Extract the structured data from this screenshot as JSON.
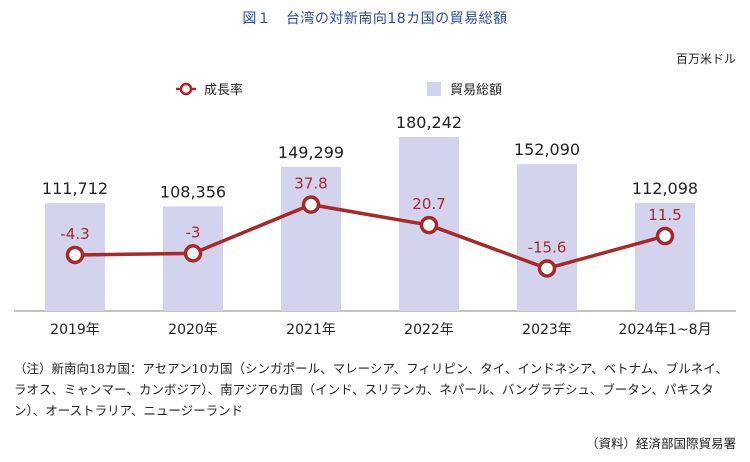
{
  "chart_data": {
    "type": "bar",
    "title": "図１　台湾の対新南向18カ国の貿易総額",
    "unit": "百万米ドル",
    "categories": [
      "2019年",
      "2020年",
      "2021年",
      "2022年",
      "2023年",
      "2024年1~8月"
    ],
    "series": [
      {
        "name": "貿易総額",
        "type": "bar",
        "values": [
          111712,
          108356,
          149299,
          180242,
          152090,
          112098
        ],
        "labels": [
          "111,712",
          "108,356",
          "149,299",
          "180,242",
          "152,090",
          "112,098"
        ],
        "color": "#d4d3ee"
      },
      {
        "name": "成長率",
        "type": "line",
        "values": [
          -4.3,
          -3,
          37.8,
          20.7,
          -15.6,
          11.5
        ],
        "labels": [
          "-4.3",
          "-3",
          "37.8",
          "20.7",
          "-15.6",
          "11.5"
        ],
        "color": "#a52a2a"
      }
    ],
    "legend_position": "top"
  },
  "note": "（注）新南向18カ国：アセアン10カ国（シンガポール、マレーシア、フィリピン、タイ、インドネシア、ベトナム、ブルネイ、ラオス、ミャンマー、カンボジア）、南アジア6カ国（インド、スリランカ、ネパール、バングラデシュ、ブータン、パキスタン）、オーストラリア、ニュージーランド",
  "source": "（資料）経済部国際貿易署"
}
